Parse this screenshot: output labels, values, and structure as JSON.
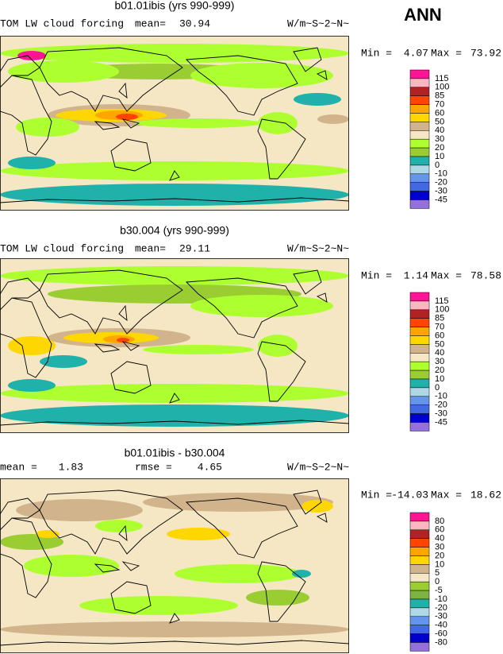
{
  "corner_label": "ANN",
  "panels": [
    {
      "title": "b01.01ibis (yrs 990-999)",
      "variable": "TOM LW cloud forcing",
      "stat_label": "mean=",
      "stat_value": 30.94,
      "units": "W/m~S~2~N~",
      "min_label": "Min =",
      "min": 4.07,
      "max_label": "Max =",
      "max": 73.92,
      "levels": [
        115,
        100,
        85,
        70,
        60,
        50,
        40,
        30,
        20,
        10,
        0,
        -10,
        -20,
        -30,
        -45
      ],
      "colors": [
        "#ff1493",
        "#ffb6c1",
        "#b22222",
        "#ff4500",
        "#ffa500",
        "#ffd700",
        "#d2b48c",
        "#f5e6c4",
        "#adff2f",
        "#9acd32",
        "#20b2aa",
        "#add8e6",
        "#6495ed",
        "#4169e1",
        "#0000cd",
        "#9370db"
      ]
    },
    {
      "title": "b30.004 (yrs 990-999)",
      "variable": "TOM LW cloud forcing",
      "stat_label": "mean=",
      "stat_value": 29.11,
      "units": "W/m~S~2~N~",
      "min_label": "Min =",
      "min": 1.14,
      "max_label": "Max =",
      "max": 78.58,
      "levels": [
        115,
        100,
        85,
        70,
        60,
        50,
        40,
        30,
        20,
        10,
        0,
        -10,
        -20,
        -30,
        -45
      ],
      "colors": [
        "#ff1493",
        "#ffb6c1",
        "#b22222",
        "#ff4500",
        "#ffa500",
        "#ffd700",
        "#d2b48c",
        "#f5e6c4",
        "#adff2f",
        "#9acd32",
        "#20b2aa",
        "#add8e6",
        "#6495ed",
        "#4169e1",
        "#0000cd",
        "#9370db"
      ]
    },
    {
      "title": "b01.01ibis - b30.004",
      "stat_label": "mean =",
      "stat_value": 1.83,
      "stat2_label": "rmse =",
      "stat2_value": 4.65,
      "units": "W/m~S~2~N~",
      "min_label": "Min =",
      "min": -14.03,
      "max_label": "Max =",
      "max": 18.62,
      "levels": [
        80,
        60,
        40,
        30,
        20,
        10,
        5,
        0,
        -5,
        -10,
        -20,
        -30,
        -40,
        -60,
        -80
      ],
      "colors": [
        "#ff1493",
        "#ffb6c1",
        "#b22222",
        "#ff4500",
        "#ffa500",
        "#ffd700",
        "#d2b48c",
        "#f5e6c4",
        "#9acd32",
        "#7cb342",
        "#20b2aa",
        "#add8e6",
        "#6495ed",
        "#4169e1",
        "#0000cd",
        "#9370db"
      ]
    }
  ]
}
